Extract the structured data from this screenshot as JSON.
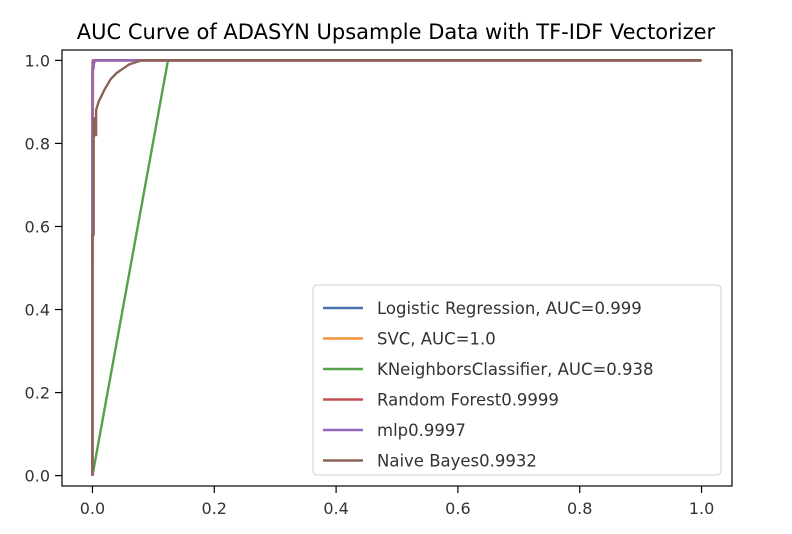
{
  "chart_data": {
    "type": "line",
    "title": "AUC Curve of ADASYN Upsample Data with TF-IDF Vectorizer",
    "xlabel": "",
    "ylabel": "",
    "xlim": [
      -0.05,
      1.05
    ],
    "ylim": [
      -0.025,
      1.025
    ],
    "xticks": [
      "0.0",
      "0.2",
      "0.4",
      "0.6",
      "0.8",
      "1.0"
    ],
    "yticks": [
      "0.0",
      "0.2",
      "0.4",
      "0.6",
      "0.8",
      "1.0"
    ],
    "grid": false,
    "legend_position": "lower-right",
    "series": [
      {
        "name": "Logistic Regression, AUC=0.999",
        "color": "#4c72b0",
        "x": [
          0.0,
          0.0,
          0.002,
          0.004,
          0.01,
          1.0
        ],
        "y": [
          0.0,
          0.97,
          0.99,
          1.0,
          1.0,
          1.0
        ]
      },
      {
        "name": "SVC, AUC=1.0",
        "color": "#f0923a",
        "x": [
          0.0,
          0.0,
          0.001,
          1.0
        ],
        "y": [
          0.0,
          0.45,
          1.0,
          1.0
        ]
      },
      {
        "name": "KNeighborsClassifier, AUC=0.938",
        "color": "#55a24a",
        "x": [
          0.0,
          0.124,
          1.0
        ],
        "y": [
          0.0,
          1.0,
          1.0
        ]
      },
      {
        "name": "Random Forest0.9999",
        "color": "#c44e52",
        "x": [
          0.0,
          0.0,
          0.0005,
          1.0
        ],
        "y": [
          0.0,
          0.98,
          1.0,
          1.0
        ]
      },
      {
        "name": "mlp0.9997",
        "color": "#9467bd",
        "x": [
          0.0,
          0.0,
          0.002,
          0.002,
          1.0
        ],
        "y": [
          0.0,
          0.98,
          0.98,
          1.0,
          1.0
        ]
      },
      {
        "name": "Naive Bayes0.9932",
        "color": "#8c6355",
        "x": [
          0.0,
          0.0,
          0.002,
          0.002,
          0.004,
          0.004,
          0.006,
          0.006,
          0.01,
          0.02,
          0.03,
          0.04,
          0.05,
          0.06,
          0.07,
          0.08,
          0.1,
          0.15,
          1.0
        ],
        "y": [
          0.0,
          0.58,
          0.58,
          0.86,
          0.86,
          0.82,
          0.82,
          0.88,
          0.9,
          0.93,
          0.955,
          0.97,
          0.98,
          0.99,
          0.995,
          1.0,
          1.0,
          1.0,
          1.0
        ]
      }
    ]
  }
}
